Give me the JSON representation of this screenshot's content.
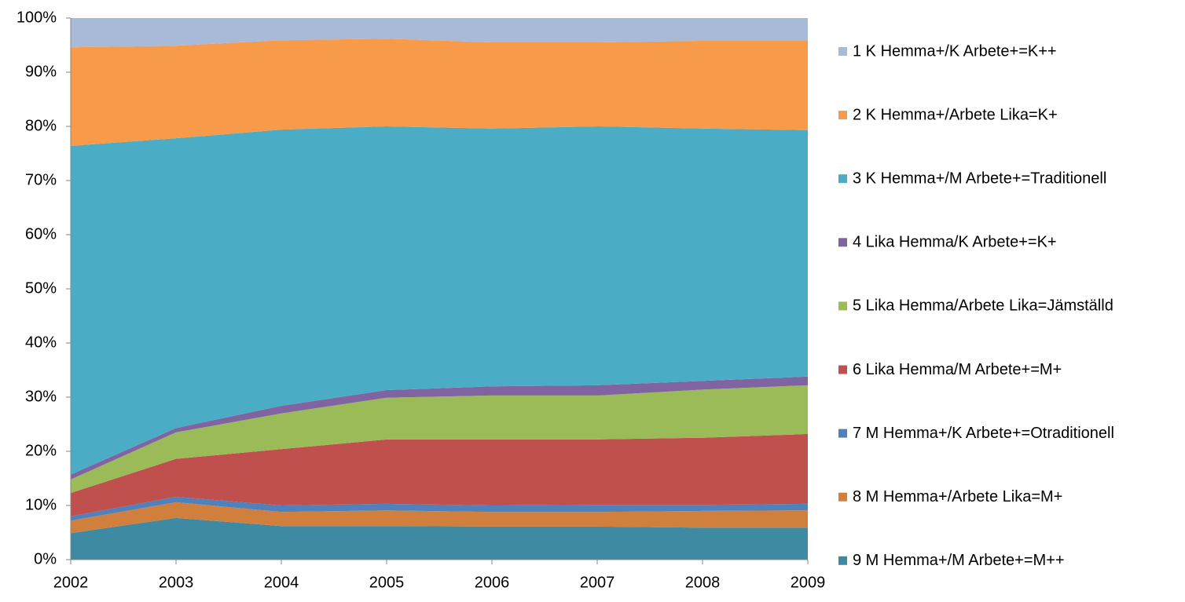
{
  "chart_data": {
    "type": "stacked_area_100",
    "categories": [
      "2002",
      "2003",
      "2004",
      "2005",
      "2006",
      "2007",
      "2008",
      "2009"
    ],
    "series": [
      {
        "name": "1 K Hemma+/K Arbete+=K++",
        "color": "#a9b9d8",
        "values": [
          5.4,
          5.1,
          4.1,
          3.8,
          4.5,
          4.5,
          4.2,
          4.2
        ]
      },
      {
        "name": "2 K Hemma+/Arbete Lika=K+",
        "color": "#f79a4a",
        "values": [
          18.2,
          17.1,
          16.5,
          16.2,
          15.9,
          15.5,
          16.2,
          16.5
        ]
      },
      {
        "name": "3 K Hemma+/M Arbete+=Traditionell",
        "color": "#4bacc6",
        "values": [
          60.7,
          53.5,
          51.0,
          48.7,
          47.6,
          47.8,
          46.6,
          45.5
        ]
      },
      {
        "name": "4 Lika Hemma/K Arbete+=K+",
        "color": "#8064a2",
        "values": [
          0.9,
          0.8,
          1.4,
          1.4,
          1.7,
          1.9,
          1.6,
          1.6
        ]
      },
      {
        "name": "5 Lika Hemma/Arbete Lika=Jämställd",
        "color": "#9bbb59",
        "values": [
          2.5,
          4.9,
          6.6,
          7.7,
          8.1,
          8.1,
          8.9,
          9.0
        ]
      },
      {
        "name": "6 Lika Hemma/M Arbete+=M+",
        "color": "#c0504d",
        "values": [
          4.3,
          7.0,
          10.4,
          11.9,
          12.2,
          12.1,
          12.4,
          12.9
        ]
      },
      {
        "name": "7 M Hemma+/K Arbete+=Otraditionell",
        "color": "#4f81bd",
        "values": [
          0.8,
          1.0,
          1.2,
          1.2,
          1.2,
          1.3,
          1.1,
          1.2
        ]
      },
      {
        "name": "8 M Hemma+/Arbete Lika=M+",
        "color": "#d0803c",
        "values": [
          2.3,
          2.9,
          2.6,
          2.9,
          2.7,
          2.7,
          3.1,
          3.2
        ]
      },
      {
        "name": "9 M Hemma+/M Arbete+=M++",
        "color": "#3e8aa3",
        "values": [
          4.9,
          7.7,
          6.2,
          6.2,
          6.1,
          6.1,
          5.9,
          5.9
        ]
      }
    ],
    "ylim": [
      0,
      100
    ],
    "yticks": [
      {
        "value": 0,
        "label": "0%"
      },
      {
        "value": 10,
        "label": "10%"
      },
      {
        "value": 20,
        "label": "20%"
      },
      {
        "value": 30,
        "label": "30%"
      },
      {
        "value": 40,
        "label": "40%"
      },
      {
        "value": 50,
        "label": "50%"
      },
      {
        "value": 60,
        "label": "60%"
      },
      {
        "value": 70,
        "label": "70%"
      },
      {
        "value": 80,
        "label": "80%"
      },
      {
        "value": 90,
        "label": "90%"
      },
      {
        "value": 100,
        "label": "100%"
      }
    ],
    "legend": "right"
  }
}
